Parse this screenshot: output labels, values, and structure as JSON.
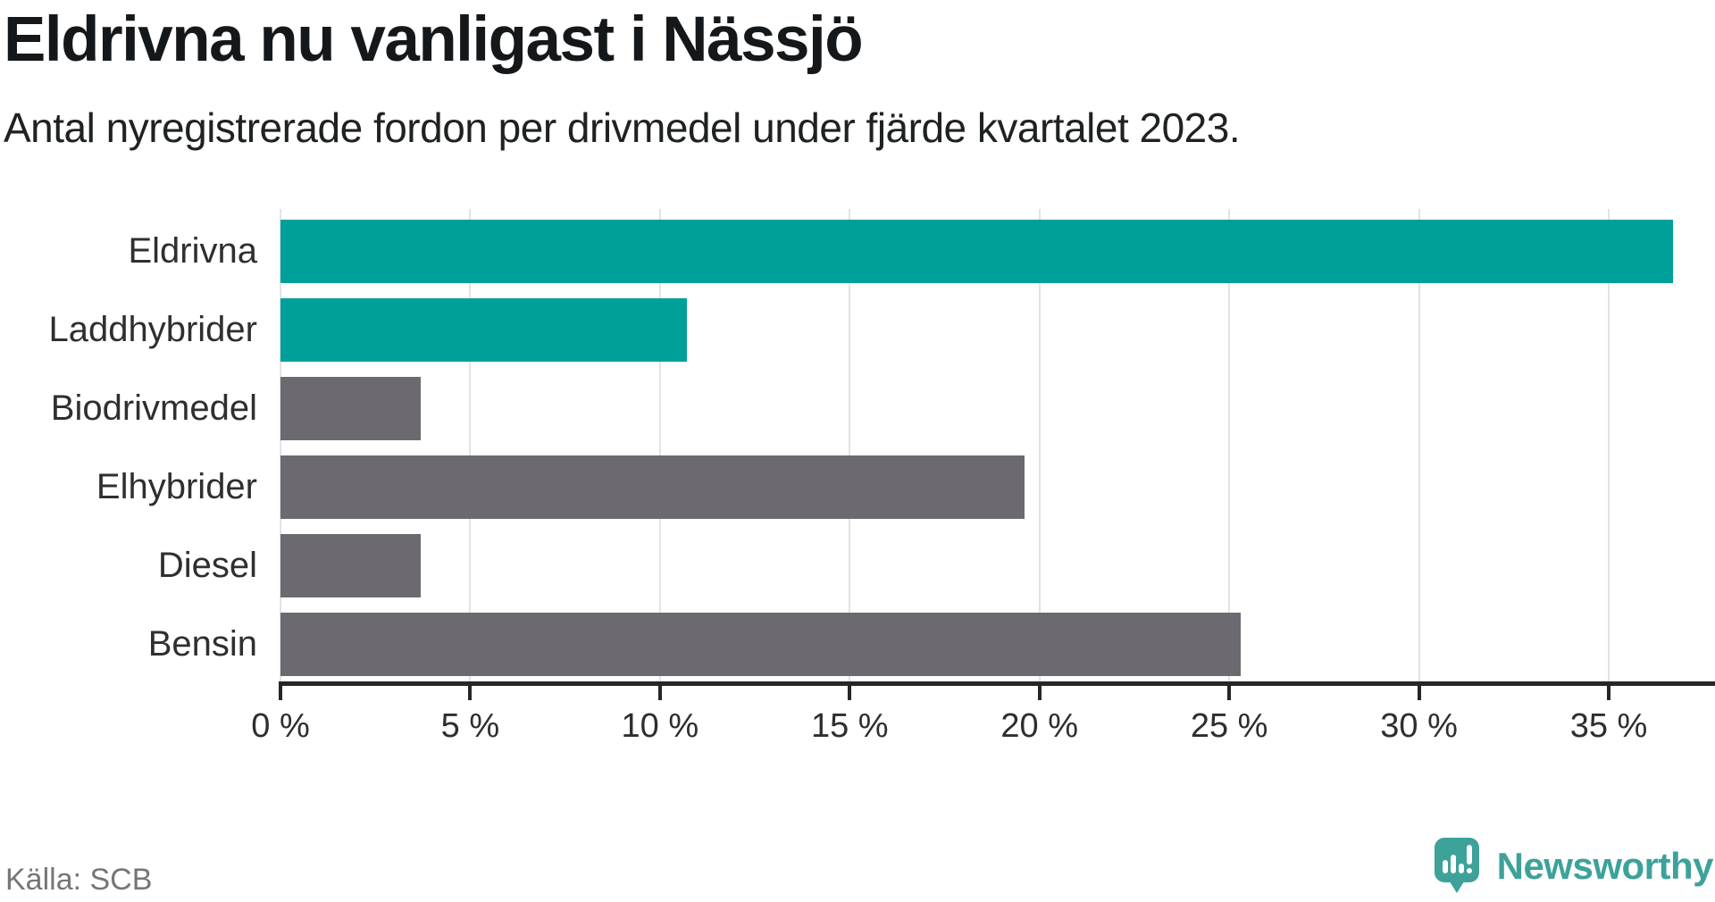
{
  "header": {
    "title": "Eldrivna nu vanligast i Nässjö",
    "subtitle": "Antal nyregistrerade fordon per drivmedel under fjärde kvartalet 2023."
  },
  "chart_data": {
    "type": "bar",
    "orientation": "horizontal",
    "unit": "%",
    "categories": [
      "Eldrivna",
      "Laddhybrider",
      "Biodrivmedel",
      "Elhybrider",
      "Diesel",
      "Bensin"
    ],
    "values": [
      36.7,
      10.7,
      3.7,
      19.6,
      3.7,
      25.3
    ],
    "colors": [
      "#00a09a",
      "#00a09a",
      "#6c6971",
      "#6c6971",
      "#6c6971",
      "#6c6971"
    ],
    "highlight_color": "#00a09a",
    "default_color": "#6c6971",
    "xlim": [
      0,
      37.8
    ],
    "xticks": [
      {
        "value": 0,
        "label": "0 %"
      },
      {
        "value": 5,
        "label": "5 %"
      },
      {
        "value": 10,
        "label": "10 %"
      },
      {
        "value": 15,
        "label": "15 %"
      },
      {
        "value": 20,
        "label": "20 %"
      },
      {
        "value": 25,
        "label": "25 %"
      },
      {
        "value": 30,
        "label": "30 %"
      },
      {
        "value": 35,
        "label": "35 %"
      }
    ],
    "grid": true,
    "legend": false
  },
  "footer": {
    "source": "Källa: SCB",
    "brand_name": "Newsworthy",
    "brand_color": "#3ca29a"
  }
}
